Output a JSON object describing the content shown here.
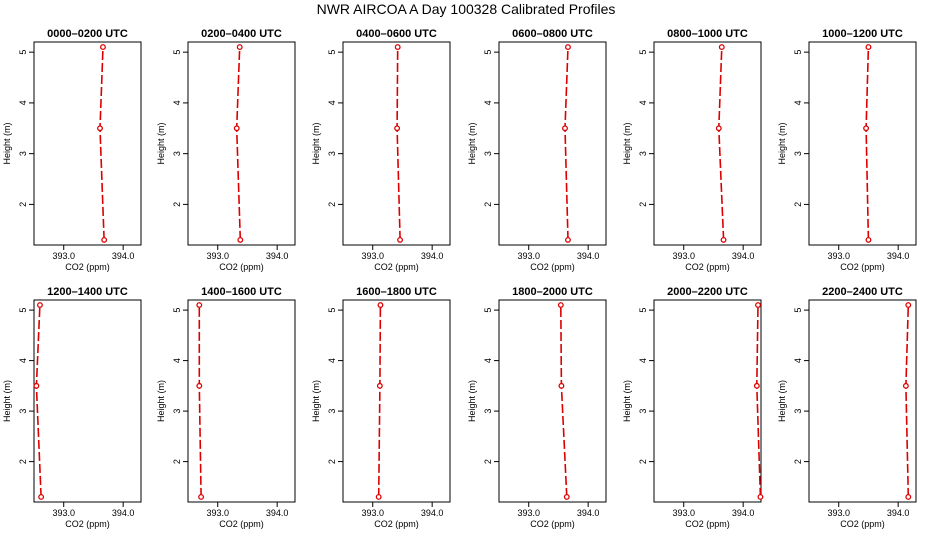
{
  "chart_data": {
    "title": "NWR AIRCOA A  Day 100328  Calibrated Profiles",
    "type": "line",
    "xlabel": "CO2 (ppm)",
    "ylabel": "Height (m)",
    "xlim": [
      392.5,
      394.3
    ],
    "ylim": [
      1.2,
      5.2
    ],
    "x_ticks": [
      393.0,
      394.0
    ],
    "x_tick_labels": [
      "393.0",
      "394.0"
    ],
    "y_ticks": [
      2,
      3,
      4,
      5
    ],
    "y_tick_labels": [
      "2",
      "3",
      "4",
      "5"
    ],
    "line_color": "#dd0000",
    "line_style": "dashed",
    "marker": "open-circle",
    "heights": [
      1.3,
      3.5,
      5.1
    ],
    "panels": [
      {
        "title": "0000–0200 UTC",
        "x": [
          393.68,
          393.61,
          393.66
        ]
      },
      {
        "title": "0200–0400 UTC",
        "x": [
          393.38,
          393.32,
          393.37
        ]
      },
      {
        "title": "0400–0600 UTC",
        "x": [
          393.46,
          393.41,
          393.42
        ]
      },
      {
        "title": "0600–0800 UTC",
        "x": [
          393.66,
          393.61,
          393.66
        ]
      },
      {
        "title": "0800–1000 UTC",
        "x": [
          393.67,
          393.59,
          393.64
        ]
      },
      {
        "title": "1000–1200 UTC",
        "x": [
          393.5,
          393.46,
          393.5
        ]
      },
      {
        "title": "1200–1400 UTC",
        "x": [
          392.62,
          392.54,
          392.6
        ]
      },
      {
        "title": "1400–1600 UTC",
        "x": [
          392.72,
          392.69,
          392.69
        ]
      },
      {
        "title": "1600–1800 UTC",
        "x": [
          393.1,
          393.12,
          393.13
        ]
      },
      {
        "title": "1800–2000 UTC",
        "x": [
          393.64,
          393.55,
          393.54
        ]
      },
      {
        "title": "2000–2200 UTC",
        "x": [
          394.29,
          394.23,
          394.25
        ]
      },
      {
        "title": "2200–2400 UTC",
        "x": [
          394.17,
          394.13,
          394.17
        ]
      }
    ]
  }
}
